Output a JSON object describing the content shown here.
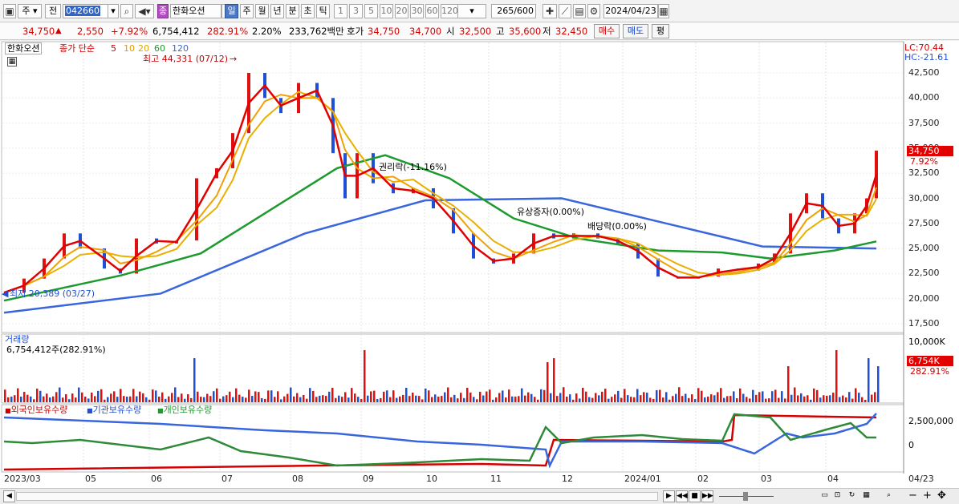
{
  "toolbar": {
    "period_type": "주",
    "prev_label": "전",
    "code": "042660",
    "stock_badge": "종",
    "stock_name": "한화오션",
    "intervals": [
      "일",
      "주",
      "월",
      "년",
      "분",
      "초",
      "틱"
    ],
    "active_interval": "일",
    "numbers": [
      "1",
      "3",
      "5",
      "10",
      "20",
      "30",
      "60",
      "120"
    ],
    "count": "265",
    "count_total": "/600",
    "date": "2024/04/23"
  },
  "quote": {
    "price": "34,750",
    "arrow": "▲",
    "change": "2,550",
    "change_pct": "+7.92%",
    "volume": "6,754,412",
    "volume_ratio": "282.91%",
    "turnover": "2.20%",
    "amount": "233,762백만",
    "hoga_label": "호가",
    "ask": "34,750",
    "bid": "34,700",
    "open_label": "시",
    "open": "32,500",
    "high_label": "고",
    "high": "35,600",
    "low_label": "저",
    "low": "32,450",
    "buy_label": "매수",
    "sell_label": "매도",
    "eval_label": "평"
  },
  "legend": {
    "name": "한화오션",
    "indicator": "종가 단순",
    "periods": [
      "5",
      "10",
      "20",
      "60",
      "120"
    ],
    "max_label": "최고 44,331 (07/12)",
    "min_label": "최저 20,389 (03/27)",
    "lc": "LC:70.44",
    "hc": "HC:-21.61",
    "notes": [
      "권리락(-11.16%)",
      "유상증자(0.00%)",
      "배당락(0.00%)"
    ]
  },
  "price_axis": [
    "42,500",
    "40,000",
    "37,500",
    "35,000",
    "32,500",
    "30,000",
    "27,500",
    "25,000",
    "22,500",
    "20,000",
    "17,500"
  ],
  "price_tag": {
    "value": "34,750",
    "pct": "7.92%"
  },
  "volume_panel": {
    "title": "거래량",
    "value": "6,754,412주(282.91%)",
    "axis_unit": "10,000K",
    "tag": "6,754K",
    "tag_pct": "282.91%"
  },
  "holdings_panel": {
    "series": [
      "외국인보유수량",
      "기관보유수량",
      "개인보유수량"
    ],
    "axis": [
      "2,500,000",
      "0"
    ]
  },
  "x_axis": [
    "2023/03",
    "05",
    "06",
    "07",
    "08",
    "09",
    "10",
    "11",
    "12",
    "2024/01",
    "02",
    "03",
    "04",
    "04/23"
  ],
  "colors": {
    "up": "#e01010",
    "down": "#1f4fd6",
    "ma5": "#e00000",
    "ma10": "#f0a000",
    "ma20": "#e8b000",
    "ma60": "#1d9a2e",
    "ma120": "#3a66dd"
  }
}
